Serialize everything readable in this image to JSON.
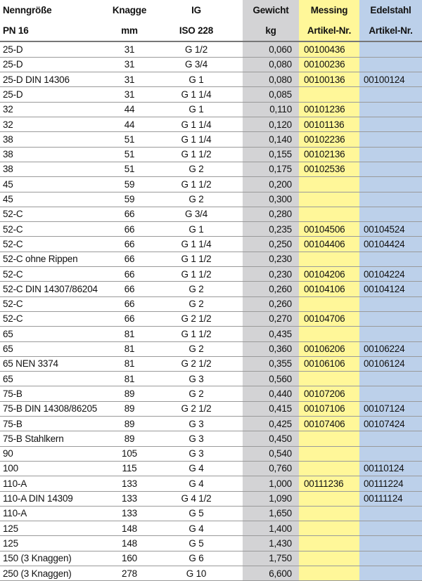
{
  "header": {
    "row1": [
      "Nenngröße",
      "Knagge",
      "IG",
      "Gewicht",
      "Messing",
      "Edelstahl"
    ],
    "row2": [
      "PN 16",
      "mm",
      "ISO 228",
      "kg",
      "Artikel-Nr.",
      "Artikel-Nr."
    ]
  },
  "table": {
    "rows": [
      [
        "25-D",
        "31",
        "G 1/2",
        "0,060",
        "00100436",
        null
      ],
      [
        "25-D",
        "31",
        "G 3/4",
        "0,080",
        "00100236",
        null
      ],
      [
        "25-D DIN 14306",
        "31",
        "G 1",
        "0,080",
        "00100136",
        "00100124"
      ],
      [
        "25-D",
        "31",
        "G 1 1/4",
        "0,085",
        null,
        null
      ],
      [
        "32",
        "44",
        "G 1",
        "0,110",
        "00101236",
        null
      ],
      [
        "32",
        "44",
        "G 1 1/4",
        "0,120",
        "00101136",
        null
      ],
      [
        "38",
        "51",
        "G 1 1/4",
        "0,140",
        "00102236",
        null
      ],
      [
        "38",
        "51",
        "G 1 1/2",
        "0,155",
        "00102136",
        null
      ],
      [
        "38",
        "51",
        "G 2",
        "0,175",
        "00102536",
        null
      ],
      [
        "45",
        "59",
        "G 1 1/2",
        "0,200",
        null,
        null
      ],
      [
        "45",
        "59",
        "G 2",
        "0,300",
        null,
        null
      ],
      [
        "52-C",
        "66",
        "G 3/4",
        "0,280",
        null,
        null
      ],
      [
        "52-C",
        "66",
        "G 1",
        "0,235",
        "00104506",
        "00104524"
      ],
      [
        "52-C",
        "66",
        "G 1 1/4",
        "0,250",
        "00104406",
        "00104424"
      ],
      [
        "52-C ohne Rippen",
        "66",
        "G 1 1/2",
        "0,230",
        null,
        null
      ],
      [
        "52-C",
        "66",
        "G 1 1/2",
        "0,230",
        "00104206",
        "00104224"
      ],
      [
        "52-C DIN 14307/86204",
        "66",
        "G 2",
        "0,260",
        "00104106",
        "00104124"
      ],
      [
        "52-C",
        "66",
        "G 2",
        "0,260",
        null,
        null
      ],
      [
        "52-C",
        "66",
        "G 2 1/2",
        "0,270",
        "00104706",
        null
      ],
      [
        "65",
        "81",
        "G 1 1/2",
        "0,435",
        null,
        null
      ],
      [
        "65",
        "81",
        "G 2",
        "0,360",
        "00106206",
        "00106224"
      ],
      [
        "65 NEN 3374",
        "81",
        "G 2 1/2",
        "0,355",
        "00106106",
        "00106124"
      ],
      [
        "65",
        "81",
        "G 3",
        "0,560",
        null,
        null
      ],
      [
        "75-B",
        "89",
        "G 2",
        "0,440",
        "00107206",
        null
      ],
      [
        "75-B DIN 14308/86205",
        "89",
        "G 2 1/2",
        "0,415",
        "00107106",
        "00107124"
      ],
      [
        "75-B",
        "89",
        "G 3",
        "0,425",
        "00107406",
        "00107424"
      ],
      [
        "75-B Stahlkern",
        "89",
        "G 3",
        "0,450",
        null,
        null
      ],
      [
        "90",
        "105",
        "G 3",
        "0,540",
        null,
        null
      ],
      [
        "100",
        "115",
        "G 4",
        "0,760",
        null,
        "00110124"
      ],
      [
        "110-A",
        "133",
        "G 4",
        "1,000",
        "00111236",
        "00111224"
      ],
      [
        "110-A DIN 14309",
        "133",
        "G 4 1/2",
        "1,090",
        null,
        "00111124"
      ],
      [
        "110-A",
        "133",
        "G 5",
        "1,650",
        null,
        null
      ],
      [
        "125",
        "148",
        "G 4",
        "1,400",
        null,
        null
      ],
      [
        "125",
        "148",
        "G 5",
        "1,430",
        null,
        null
      ],
      [
        "150 (3 Knaggen)",
        "160",
        "G 6",
        "1,750",
        null,
        null
      ],
      [
        "250 (3 Knaggen)",
        "278",
        "G 10",
        "6,600",
        null,
        null
      ]
    ]
  }
}
